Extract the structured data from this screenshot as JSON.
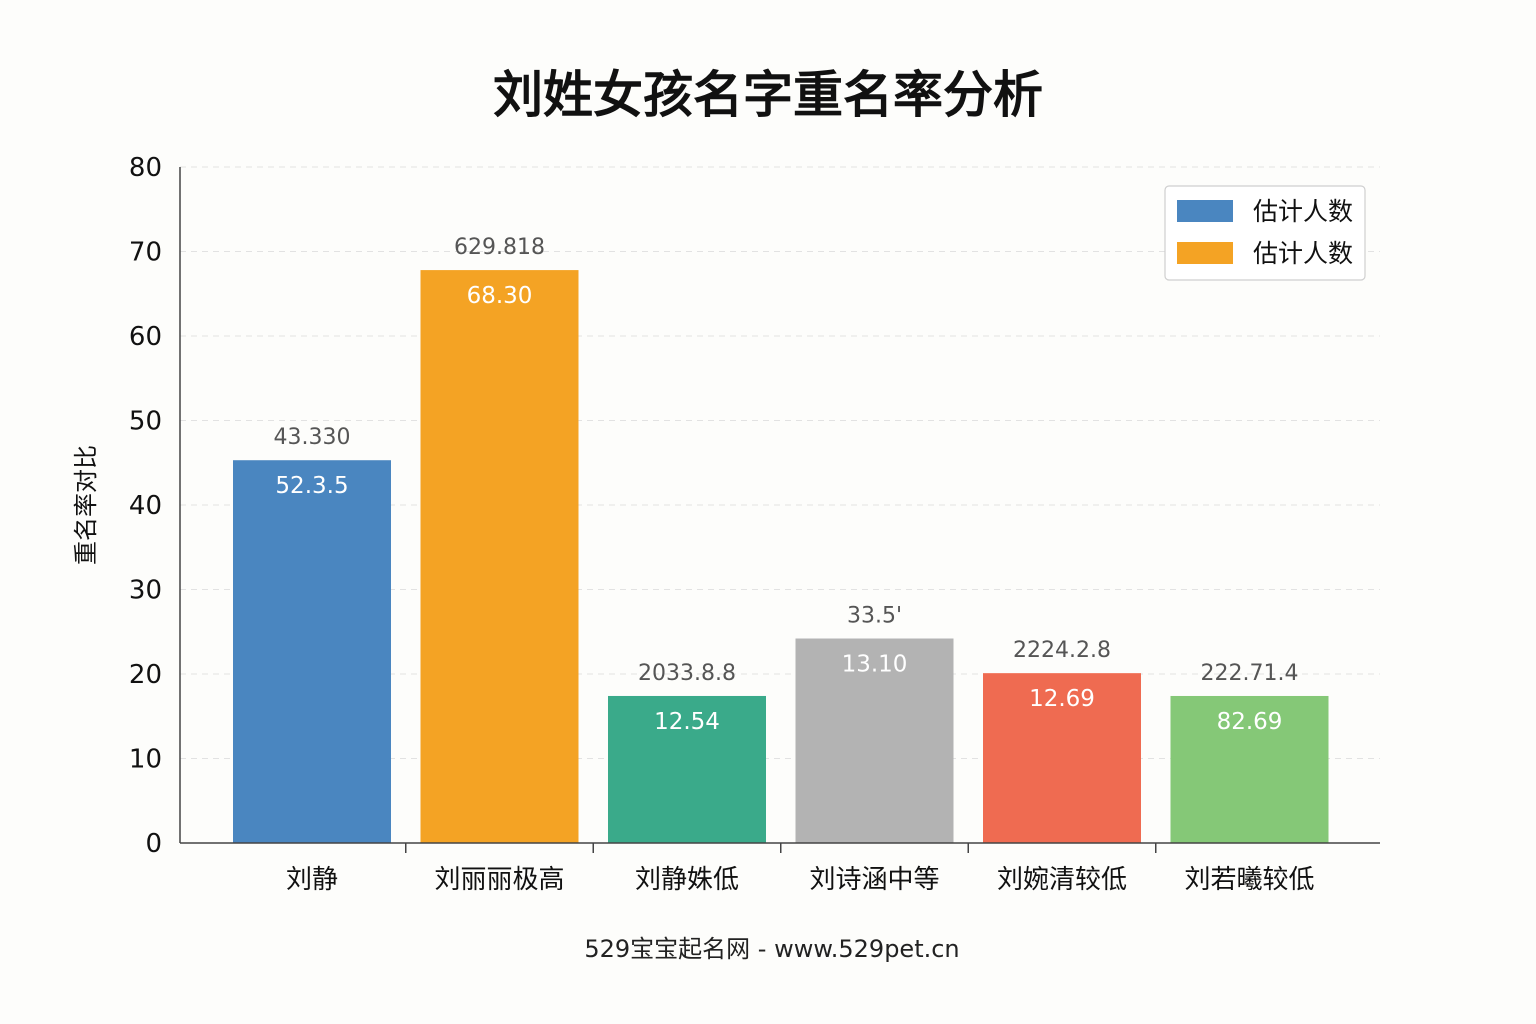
{
  "chart_data": {
    "type": "bar",
    "title": "刘姓女孩名字重名率分析",
    "ylabel": "重名率对比",
    "xlabel": "",
    "ylim": [
      0,
      80
    ],
    "yticks": [
      0,
      10,
      20,
      30,
      40,
      50,
      60,
      70,
      80
    ],
    "grid": true,
    "categories": [
      "刘静",
      "刘丽丽极高",
      "刘静姝低",
      "刘诗涵中等",
      "刘婉清较低",
      "刘若曦较低"
    ],
    "values": [
      45.3,
      67.8,
      17.4,
      24.2,
      20.1,
      17.4
    ],
    "top_labels": [
      "43.330",
      "629.818",
      "2033.8.8",
      "33.5'",
      "2224.2.8",
      "222.71.4"
    ],
    "inner_labels": [
      "52.3.5",
      "68.30",
      "12.54",
      "13.10",
      "12.69",
      "82.69"
    ],
    "colors": [
      "#4a86c0",
      "#f4a324",
      "#3aaa8a",
      "#b3b3b3",
      "#ef6b51",
      "#85c877"
    ],
    "legend": {
      "placement": "top-right",
      "entries": [
        {
          "label": "估计人数",
          "color": "#4a86c0"
        },
        {
          "label": "估计人数",
          "color": "#f4a324"
        }
      ]
    }
  },
  "footer": "529宝宝起名网 - www.529pet.cn"
}
